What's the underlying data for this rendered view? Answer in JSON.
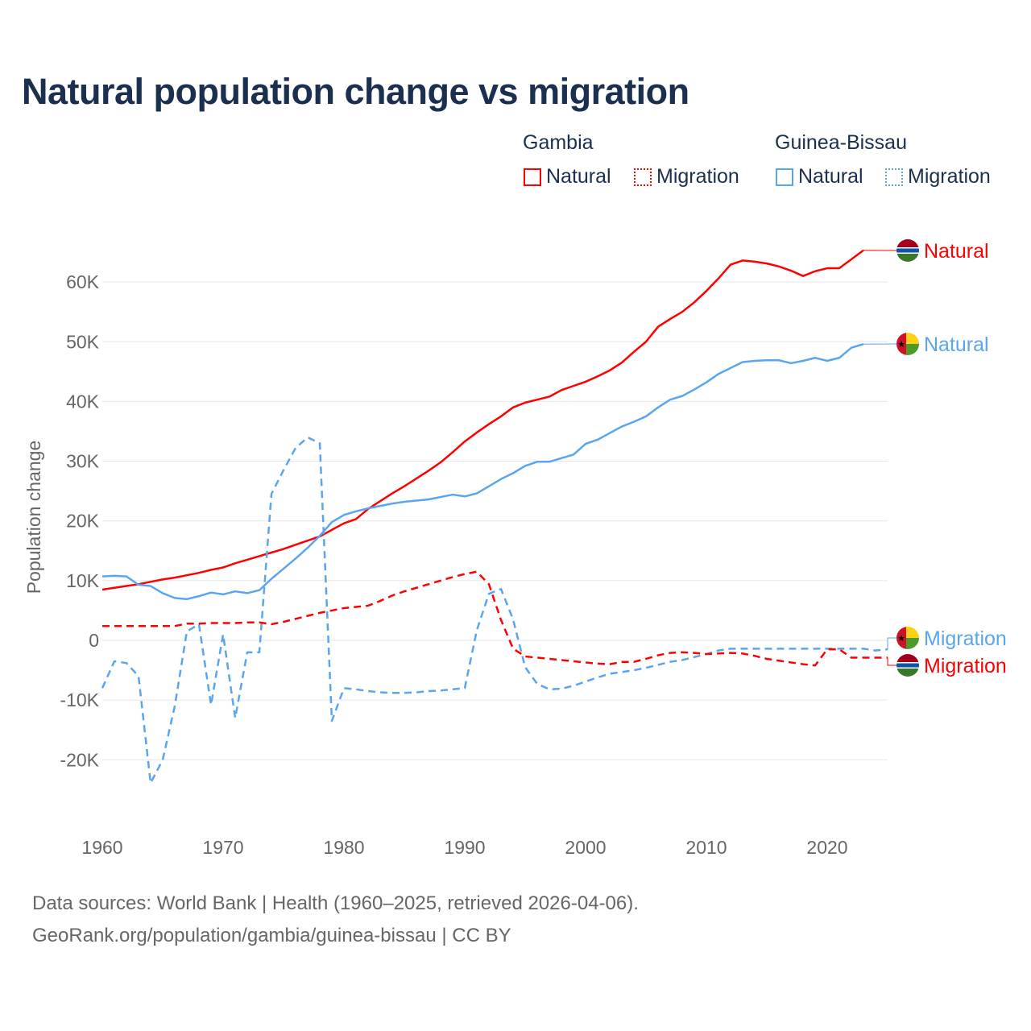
{
  "chart_data": {
    "type": "line",
    "title": "Natural population change vs migration",
    "xlabel": "",
    "ylabel": "Population change",
    "xlim": [
      1960,
      2025
    ],
    "ylim": [
      -27000,
      68000
    ],
    "yticks": [
      -20000,
      -10000,
      0,
      10000,
      20000,
      30000,
      40000,
      50000,
      60000
    ],
    "ytick_labels": [
      "-20K",
      "-10K",
      "0",
      "10K",
      "20K",
      "30K",
      "40K",
      "50K",
      "60K"
    ],
    "xticks": [
      1960,
      1970,
      1980,
      1990,
      2000,
      2010,
      2020
    ],
    "xtick_labels": [
      "1960",
      "1970",
      "1980",
      "1990",
      "2000",
      "2010",
      "2020"
    ],
    "grid": true,
    "legend_placement": "top-right",
    "legend_groups": [
      {
        "country": "Gambia",
        "items": [
          "Natural",
          "Migration"
        ]
      },
      {
        "country": "Guinea-Bissau",
        "items": [
          "Natural",
          "Migration"
        ]
      }
    ],
    "series": [
      {
        "name": "Gambia Natural",
        "country": "Gambia",
        "kind": "Natural",
        "color": "#ff0000",
        "dashed": false,
        "start_year": 1960,
        "end_label": "Natural",
        "values": [
          8.5,
          8.8,
          9.1,
          9.4,
          9.8,
          10.2,
          10.5,
          10.9,
          11.3,
          11.8,
          12.2,
          12.9,
          13.5,
          14.1,
          14.7,
          15.3,
          16.0,
          16.7,
          17.4,
          18.5,
          19.6,
          20.3,
          22.0,
          23.3,
          24.6,
          25.8,
          27.1,
          28.4,
          29.8,
          31.5,
          33.3,
          34.8,
          36.2,
          37.5,
          39.0,
          39.8,
          40.3,
          40.8,
          41.9,
          42.6,
          43.3,
          44.2,
          45.2,
          46.5,
          48.3,
          50.0,
          52.5,
          53.8,
          55.0,
          56.6,
          58.5,
          60.6,
          62.9,
          63.6,
          63.4,
          63.1,
          62.6,
          61.9,
          61.0,
          61.8,
          62.3,
          62.3,
          63.8,
          65.3
        ]
      },
      {
        "name": "Guinea-Bissau Natural",
        "country": "Guinea-Bissau",
        "kind": "Natural",
        "color": "#5aa6ee",
        "dashed": false,
        "start_year": 1960,
        "end_label": "Natural",
        "values": [
          10.7,
          10.8,
          10.7,
          9.3,
          9.1,
          7.9,
          7.1,
          6.9,
          7.4,
          8.0,
          7.7,
          8.2,
          7.9,
          8.4,
          10.3,
          12.0,
          13.7,
          15.5,
          17.5,
          19.8,
          21.0,
          21.6,
          22.1,
          22.5,
          22.9,
          23.2,
          23.4,
          23.6,
          24.0,
          24.4,
          24.1,
          24.6,
          25.8,
          27.0,
          28.0,
          29.2,
          29.9,
          29.9,
          30.5,
          31.1,
          32.9,
          33.6,
          34.7,
          35.8,
          36.6,
          37.5,
          39.0,
          40.3,
          40.9,
          42.0,
          43.2,
          44.6,
          45.6,
          46.6,
          46.8,
          46.9,
          46.9,
          46.4,
          46.8,
          47.3,
          46.8,
          47.3,
          49.0,
          49.6
        ]
      },
      {
        "name": "Guinea-Bissau Migration",
        "country": "Guinea-Bissau",
        "kind": "Migration",
        "color": "#5aa6ee",
        "dashed": true,
        "start_year": 1960,
        "end_label": "Migration",
        "values": [
          -8.0,
          -3.5,
          -3.8,
          -6.0,
          -23.9,
          -20.0,
          -11.0,
          1.5,
          2.7,
          -10.8,
          1.0,
          -13.0,
          -2.0,
          -2.0,
          24.5,
          28.5,
          32.2,
          34.0,
          33.0,
          -13.5,
          -8.0,
          -8.2,
          -8.5,
          -8.7,
          -8.8,
          -8.8,
          -8.7,
          -8.5,
          -8.4,
          -8.2,
          -8.0,
          1.7,
          7.8,
          8.6,
          3.5,
          -4.5,
          -7.3,
          -8.2,
          -8.1,
          -7.6,
          -6.9,
          -6.2,
          -5.6,
          -5.3,
          -5.0,
          -4.6,
          -4.1,
          -3.6,
          -3.3,
          -2.8,
          -2.3,
          -1.7,
          -1.4,
          -1.4,
          -1.4,
          -1.4,
          -1.4,
          -1.4,
          -1.4,
          -1.4,
          -1.4,
          -1.4,
          -1.4,
          -1.4,
          -1.7,
          -1.5
        ]
      },
      {
        "name": "Gambia Migration",
        "country": "Gambia",
        "kind": "Migration",
        "color": "#ff0000",
        "dashed": true,
        "start_year": 1960,
        "end_label": "Migration",
        "values": [
          2.4,
          2.4,
          2.4,
          2.4,
          2.4,
          2.4,
          2.4,
          2.8,
          2.8,
          2.9,
          2.9,
          2.9,
          3.0,
          3.0,
          2.7,
          3.1,
          3.6,
          4.1,
          4.6,
          5.0,
          5.4,
          5.6,
          5.8,
          6.6,
          7.5,
          8.2,
          8.8,
          9.4,
          10.0,
          10.6,
          11.1,
          11.5,
          9.4,
          3.4,
          -1.4,
          -2.7,
          -2.9,
          -3.1,
          -3.3,
          -3.5,
          -3.7,
          -3.9,
          -4.0,
          -3.6,
          -3.6,
          -3.1,
          -2.5,
          -2.1,
          -2.0,
          -2.1,
          -2.3,
          -2.2,
          -2.1,
          -2.2,
          -2.6,
          -3.1,
          -3.4,
          -3.7,
          -4.0,
          -4.2,
          -1.5,
          -1.5,
          -2.9,
          -2.9,
          -2.9,
          -2.9
        ]
      }
    ],
    "value_unit": "thousands"
  },
  "footer": {
    "line1": "Data sources: World Bank | Health (1960–2025, retrieved 2026-04-06).",
    "line2": "GeoRank.org/population/gambia/guinea-bissau | CC BY"
  },
  "colors": {
    "title": "#1b3050",
    "gambia": "#ff0000",
    "guinea_bissau": "#5aa6ee",
    "grid": "#e6e6e6",
    "axis_text": "#666666"
  }
}
